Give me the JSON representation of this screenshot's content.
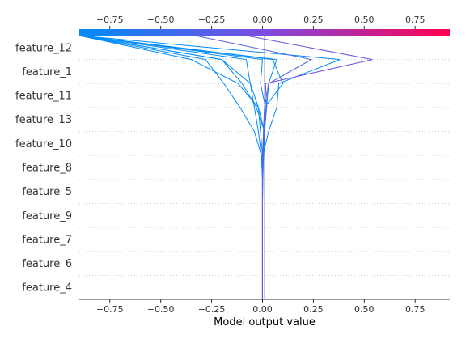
{
  "chart_data": {
    "type": "decision-plot",
    "xlabel": "Model output value",
    "xlim": [
      -0.9,
      0.92
    ],
    "base_value": 0.0,
    "xticks": [
      -0.75,
      -0.5,
      -0.25,
      0.0,
      0.25,
      0.5,
      0.75
    ],
    "xtick_labels": [
      "−0.75",
      "−0.50",
      "−0.25",
      "0.00",
      "0.25",
      "0.50",
      "0.75"
    ],
    "colormap": [
      "#008bfb",
      "#7c4be0",
      "#ff0051"
    ],
    "grid": "dotted horizontal",
    "features": [
      "feature_12",
      "feature_1",
      "feature_11",
      "feature_13",
      "feature_10",
      "feature_8",
      "feature_5",
      "feature_9",
      "feature_7",
      "feature_6",
      "feature_4"
    ],
    "series": [
      {
        "values": [
          0,
          0,
          0,
          0,
          0,
          0.002,
          0.005,
          0.01,
          -0.02,
          -0.12,
          -0.35,
          -0.9
        ]
      },
      {
        "values": [
          0,
          0,
          0,
          0,
          0,
          0,
          0,
          0.01,
          -0.03,
          -0.1,
          -0.2,
          -0.9
        ]
      },
      {
        "values": [
          0,
          0,
          0,
          0,
          0,
          0,
          -0.005,
          -0.04,
          -0.11,
          -0.19,
          -0.28,
          -0.9
        ]
      },
      {
        "values": [
          0,
          0,
          0,
          0,
          0,
          0,
          0.002,
          0.03,
          0.07,
          0.08,
          0.38,
          -0.9
        ]
      },
      {
        "values": [
          0,
          0,
          0,
          0,
          0,
          0,
          0,
          0.01,
          0.02,
          0.03,
          0.07,
          -0.9
        ]
      },
      {
        "values": [
          0,
          0,
          0,
          0,
          0,
          0,
          0,
          0.005,
          0.01,
          0.1,
          0.05,
          -0.9
        ]
      },
      {
        "values": [
          0,
          0,
          0,
          0,
          0,
          0,
          -0.005,
          -0.02,
          -0.04,
          -0.06,
          -0.2,
          -0.9
        ]
      },
      {
        "values": [
          0,
          0,
          0,
          0,
          0,
          0,
          0,
          -0.01,
          -0.02,
          -0.06,
          -0.08,
          -0.9
        ]
      },
      {
        "values": [
          0,
          0,
          0,
          0,
          0,
          0,
          0,
          0.01,
          0.015,
          -0.01,
          0.0,
          -0.9
        ]
      },
      {
        "values": [
          0,
          0,
          0,
          0,
          0,
          0,
          0.002,
          0.005,
          0.01,
          0.03,
          0.24,
          -0.33
        ]
      },
      {
        "values": [
          0,
          0,
          0,
          0,
          0,
          0,
          0,
          0.01,
          0.02,
          0.015,
          0.54,
          -0.08
        ]
      }
    ]
  }
}
